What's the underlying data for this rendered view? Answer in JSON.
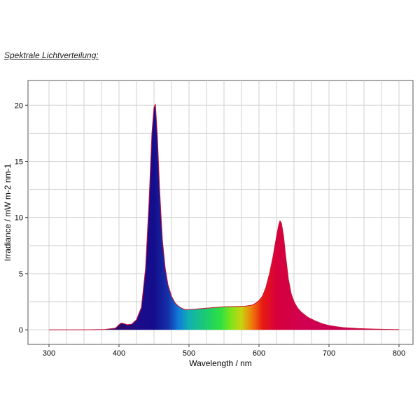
{
  "heading": "Spektrale Lichtverteilung:",
  "chart_data": {
    "type": "area",
    "title": "",
    "xlabel": "Wavelength / nm",
    "ylabel": "Irradiance / mW m-2 nm-1",
    "xlim": [
      270,
      820
    ],
    "ylim": [
      -1.3,
      22.2
    ],
    "x_ticks": [
      300,
      400,
      500,
      600,
      700,
      800
    ],
    "y_ticks": [
      0,
      5,
      10,
      15,
      20
    ],
    "grid": true,
    "line_color": "#cc1133",
    "fill": "spectral gradient",
    "series": [
      {
        "x": [
          300,
          350,
          380,
          395,
          400,
          403,
          407,
          412,
          418,
          425,
          432,
          438,
          443,
          447,
          450,
          452,
          455,
          458,
          462,
          466,
          470,
          475,
          480,
          485,
          490,
          495,
          500,
          510,
          520,
          530,
          540,
          550,
          560,
          570,
          580,
          590,
          595,
          600,
          605,
          610,
          615,
          620,
          625,
          628,
          630,
          632,
          635,
          638,
          642,
          646,
          650,
          655,
          660,
          670,
          680,
          690,
          700,
          710,
          720,
          740,
          760,
          780,
          800
        ],
        "y": [
          0.0,
          0.0,
          0.03,
          0.15,
          0.45,
          0.6,
          0.55,
          0.45,
          0.5,
          0.9,
          2.0,
          5.5,
          11.5,
          17.5,
          19.8,
          20.1,
          17.0,
          12.5,
          8.0,
          5.5,
          4.0,
          3.0,
          2.4,
          2.1,
          1.9,
          1.8,
          1.8,
          1.85,
          1.9,
          1.95,
          2.0,
          2.05,
          2.07,
          2.08,
          2.1,
          2.2,
          2.35,
          2.6,
          3.0,
          3.8,
          5.0,
          6.5,
          8.3,
          9.3,
          9.7,
          9.5,
          8.4,
          6.6,
          4.5,
          3.2,
          2.5,
          1.95,
          1.6,
          1.1,
          0.8,
          0.55,
          0.38,
          0.28,
          0.2,
          0.12,
          0.07,
          0.04,
          0.02
        ]
      }
    ]
  }
}
